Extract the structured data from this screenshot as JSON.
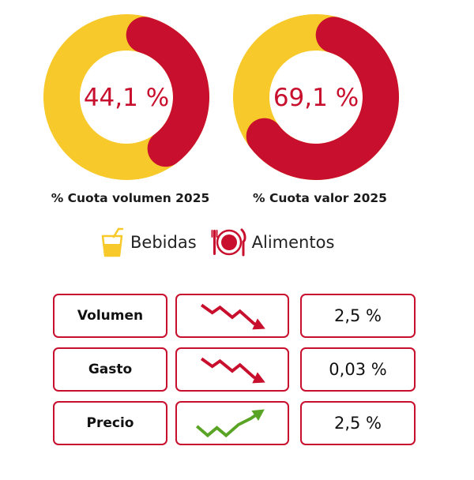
{
  "colors": {
    "red": "#c8102e",
    "yellow": "#f7c92a",
    "green": "#5aa425",
    "box_border": "#c8102e",
    "trend_down": "#c8102e",
    "trend_up": "#5aa425"
  },
  "chart_data": [
    {
      "type": "pie",
      "variant": "donut",
      "title": "% Cuota volumen 2025",
      "center_label": "44,1 %",
      "slices": [
        {
          "name": "Alimentos",
          "value": 44.1,
          "color": "#c8102e"
        },
        {
          "name": "Bebidas",
          "value": 55.9,
          "color": "#f7c92a"
        }
      ]
    },
    {
      "type": "pie",
      "variant": "donut",
      "title": "% Cuota valor 2025",
      "center_label": "69,1 %",
      "slices": [
        {
          "name": "Alimentos",
          "value": 69.1,
          "color": "#c8102e"
        },
        {
          "name": "Bebidas",
          "value": 30.9,
          "color": "#f7c92a"
        }
      ]
    }
  ],
  "legend": [
    {
      "label": "Bebidas",
      "icon": "drink-glass-icon",
      "color": "#f7c92a"
    },
    {
      "label": "Alimentos",
      "icon": "plate-cutlery-icon",
      "color": "#c8102e"
    }
  ],
  "table": [
    {
      "label": "Volumen",
      "trend": "down",
      "trend_icon": "trend-down-arrow-icon",
      "value": "2,5 %"
    },
    {
      "label": "Gasto",
      "trend": "down",
      "trend_icon": "trend-down-arrow-icon",
      "value": "0,03 %"
    },
    {
      "label": "Precio",
      "trend": "up",
      "trend_icon": "trend-up-arrow-icon",
      "value": "2,5 %"
    }
  ]
}
